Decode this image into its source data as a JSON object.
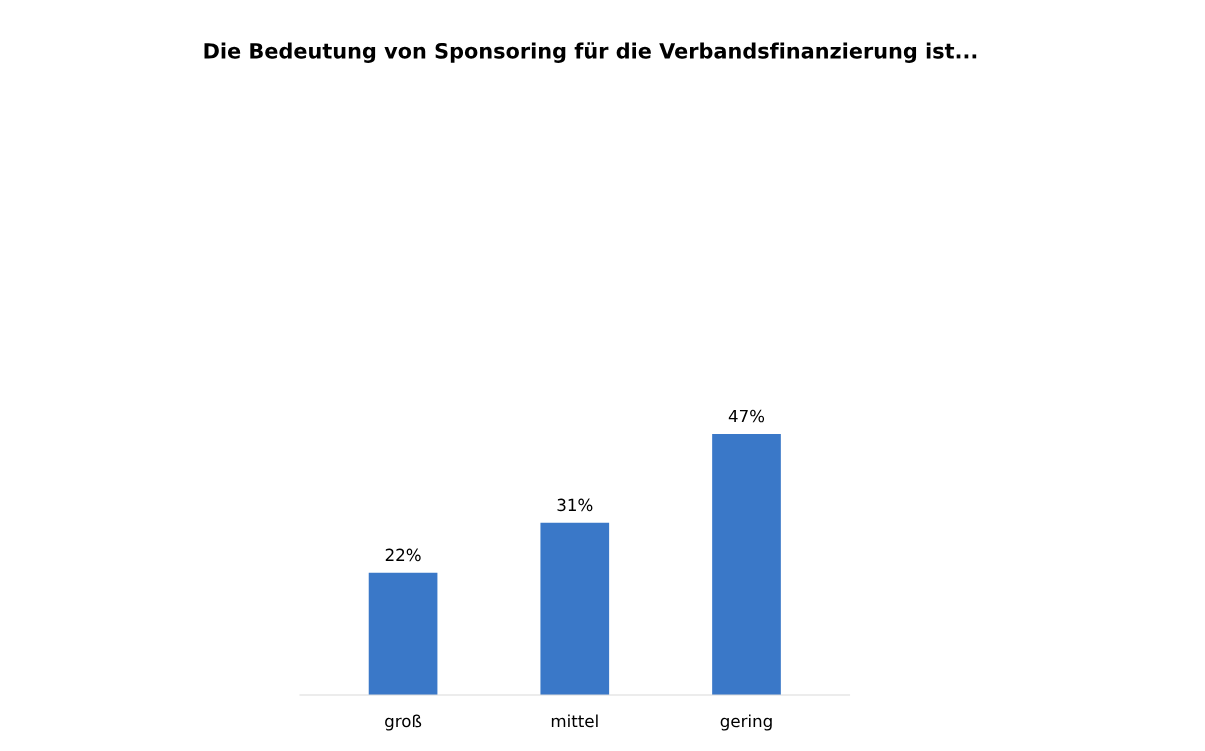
{
  "chart_data": {
    "type": "bar",
    "title": "Die Bedeutung von Sponsoring für die Verbandsfinanzierung ist...",
    "categories": [
      "groß",
      "mittel",
      "gering"
    ],
    "values": [
      22,
      31,
      47
    ],
    "value_labels": [
      "22%",
      "31%",
      "47%"
    ],
    "color": "#3a78c8",
    "grid": false,
    "legend": false
  }
}
